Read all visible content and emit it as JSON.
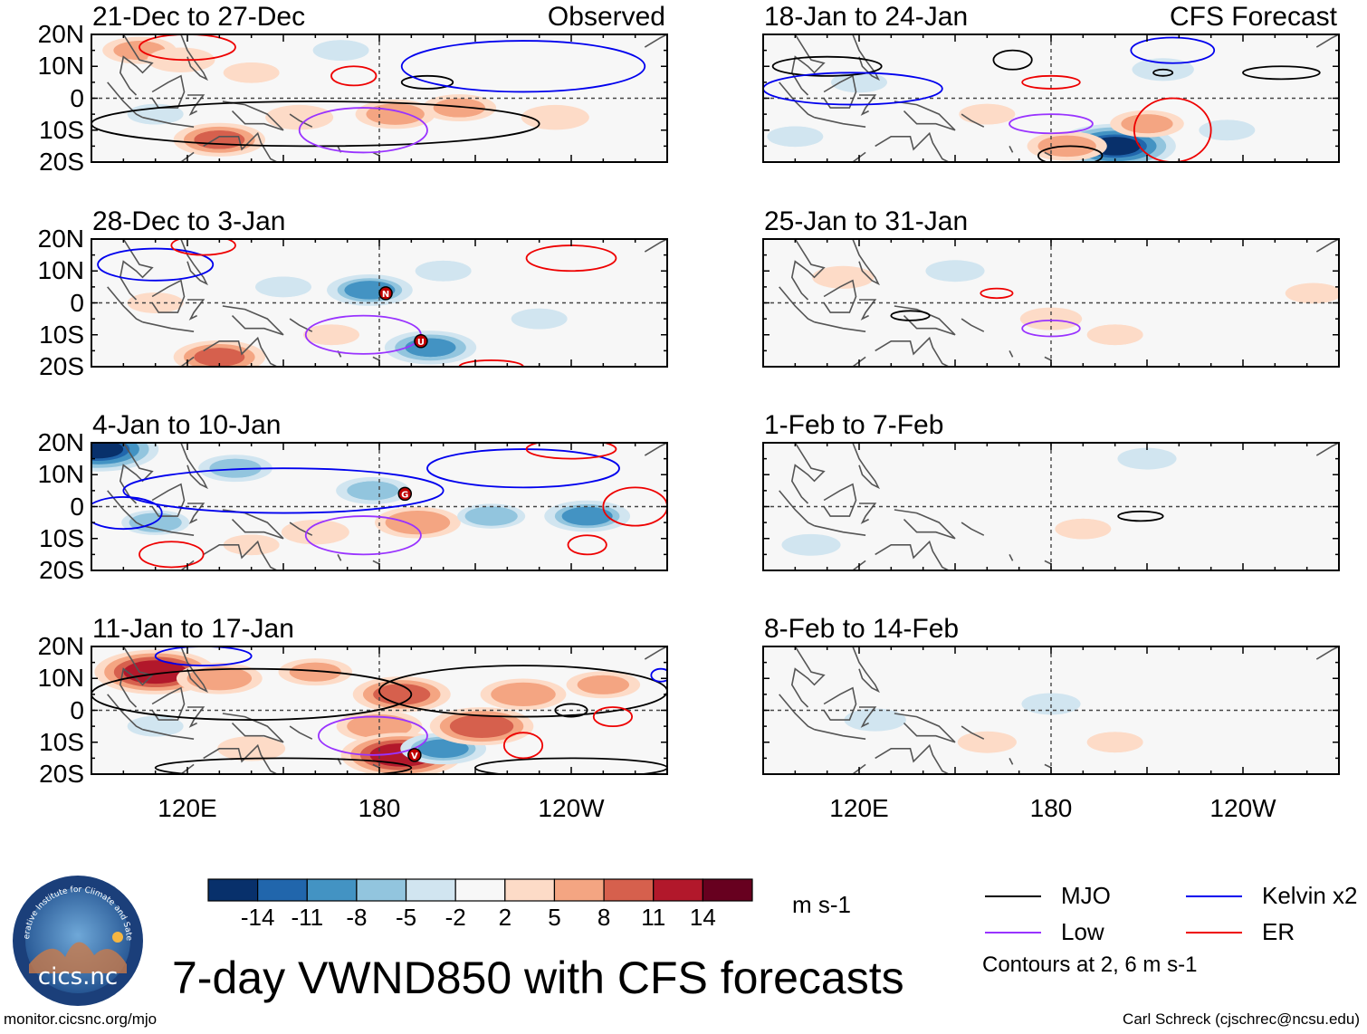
{
  "figure": {
    "title": "7-day VWND850 with CFS forecasts",
    "footer_left": "monitor.cicsnc.org/mjo",
    "footer_right": "Carl Schreck (cjschrec@ncsu.edu)",
    "units": "m s-1",
    "contour_note": "Contours at 2, 6 m s-1",
    "logo": {
      "arc_text": "Cooperative Institute for Climate and Satellites",
      "name": "cics.nc"
    }
  },
  "chart_data": [
    {
      "type": "heatmap",
      "column": "left",
      "row": 0,
      "title": "21-Dec to 27-Dec",
      "tag": "Observed",
      "xlim": [
        90,
        270
      ],
      "ylim": [
        -20,
        20
      ],
      "yticks": [
        "20N",
        "10N",
        "0",
        "10S",
        "20S"
      ],
      "xticks": [],
      "anomalies": [
        {
          "lon": 105,
          "lat": 15,
          "value": 6
        },
        {
          "lon": 118,
          "lat": 12,
          "value": 5
        },
        {
          "lon": 130,
          "lat": -13,
          "value": 9
        },
        {
          "lon": 155,
          "lat": -6,
          "value": 5
        },
        {
          "lon": 185,
          "lat": -5,
          "value": 7
        },
        {
          "lon": 205,
          "lat": -3,
          "value": 6
        },
        {
          "lon": 235,
          "lat": -6,
          "value": 5
        },
        {
          "lon": 140,
          "lat": 8,
          "value": 3
        },
        {
          "lon": 168,
          "lat": 15,
          "value": -3
        },
        {
          "lon": 110,
          "lat": -5,
          "value": -3
        }
      ],
      "contours": [
        {
          "type": "MJO",
          "lon": 160,
          "lat": -8,
          "rx": 70,
          "ry": 7
        },
        {
          "type": "MJO",
          "lon": 195,
          "lat": 5,
          "rx": 8,
          "ry": 2
        },
        {
          "type": "Kelvin",
          "lon": 225,
          "lat": 10,
          "rx": 38,
          "ry": 8
        },
        {
          "type": "Low",
          "lon": 175,
          "lat": -10,
          "rx": 20,
          "ry": 7
        },
        {
          "type": "ER",
          "lon": 172,
          "lat": 7,
          "rx": 7,
          "ry": 3
        },
        {
          "type": "ER",
          "lon": 120,
          "lat": 16,
          "rx": 15,
          "ry": 4
        }
      ],
      "storms": []
    },
    {
      "type": "heatmap",
      "column": "left",
      "row": 1,
      "title": "28-Dec to 3-Jan",
      "tag": "",
      "xlim": [
        90,
        270
      ],
      "ylim": [
        -20,
        20
      ],
      "yticks": [
        "20N",
        "10N",
        "0",
        "10S",
        "20S"
      ],
      "xticks": [],
      "anomalies": [
        {
          "lon": 177,
          "lat": 4,
          "value": -8
        },
        {
          "lon": 196,
          "lat": -14,
          "value": -9
        },
        {
          "lon": 130,
          "lat": -17,
          "value": 9
        },
        {
          "lon": 200,
          "lat": 10,
          "value": -3
        },
        {
          "lon": 230,
          "lat": -5,
          "value": -3
        },
        {
          "lon": 150,
          "lat": 5,
          "value": -3
        },
        {
          "lon": 110,
          "lat": 0,
          "value": 3
        },
        {
          "lon": 165,
          "lat": -10,
          "value": 3
        }
      ],
      "contours": [
        {
          "type": "Kelvin",
          "lon": 110,
          "lat": 12,
          "rx": 18,
          "ry": 5
        },
        {
          "type": "Low",
          "lon": 175,
          "lat": -10,
          "rx": 18,
          "ry": 6
        },
        {
          "type": "ER",
          "lon": 240,
          "lat": 14,
          "rx": 14,
          "ry": 4
        },
        {
          "type": "ER",
          "lon": 125,
          "lat": 18,
          "rx": 10,
          "ry": 3
        },
        {
          "type": "ER",
          "lon": 215,
          "lat": -20,
          "rx": 10,
          "ry": 2
        }
      ],
      "storms": [
        {
          "lon": 182,
          "lat": 3,
          "label": "N"
        },
        {
          "lon": 193,
          "lat": -12,
          "label": "U"
        }
      ]
    },
    {
      "type": "heatmap",
      "column": "left",
      "row": 2,
      "title": "4-Jan to 10-Jan",
      "tag": "",
      "xlim": [
        90,
        270
      ],
      "ylim": [
        -20,
        20
      ],
      "yticks": [
        "20N",
        "10N",
        "0",
        "10S",
        "20S"
      ],
      "xticks": [],
      "anomalies": [
        {
          "lon": 92,
          "lat": 18,
          "value": -14
        },
        {
          "lon": 135,
          "lat": 12,
          "value": -6
        },
        {
          "lon": 178,
          "lat": 5,
          "value": -6
        },
        {
          "lon": 192,
          "lat": -5,
          "value": 8
        },
        {
          "lon": 160,
          "lat": -8,
          "value": 5
        },
        {
          "lon": 215,
          "lat": -3,
          "value": -5
        },
        {
          "lon": 245,
          "lat": -3,
          "value": -8
        },
        {
          "lon": 110,
          "lat": -5,
          "value": -5
        },
        {
          "lon": 140,
          "lat": -12,
          "value": 3
        }
      ],
      "contours": [
        {
          "type": "Kelvin",
          "lon": 150,
          "lat": 5,
          "rx": 50,
          "ry": 7
        },
        {
          "type": "Kelvin",
          "lon": 225,
          "lat": 12,
          "rx": 30,
          "ry": 6
        },
        {
          "type": "Kelvin",
          "lon": 100,
          "lat": -2,
          "rx": 12,
          "ry": 5
        },
        {
          "type": "Low",
          "lon": 175,
          "lat": -9,
          "rx": 18,
          "ry": 6
        },
        {
          "type": "ER",
          "lon": 115,
          "lat": -15,
          "rx": 10,
          "ry": 4
        },
        {
          "type": "ER",
          "lon": 260,
          "lat": 0,
          "rx": 10,
          "ry": 6
        },
        {
          "type": "ER",
          "lon": 245,
          "lat": -12,
          "rx": 6,
          "ry": 3
        },
        {
          "type": "ER",
          "lon": 240,
          "lat": 18,
          "rx": 14,
          "ry": 3
        }
      ],
      "storms": [
        {
          "lon": 188,
          "lat": 4,
          "label": "G"
        }
      ]
    },
    {
      "type": "heatmap",
      "column": "left",
      "row": 3,
      "title": "11-Jan to 17-Jan",
      "tag": "",
      "xlim": [
        90,
        270
      ],
      "ylim": [
        -20,
        20
      ],
      "yticks": [
        "20N",
        "10N",
        "0",
        "10S",
        "20S"
      ],
      "xticks": [
        "120E",
        "180",
        "120W"
      ],
      "anomalies": [
        {
          "lon": 110,
          "lat": 12,
          "value": 14
        },
        {
          "lon": 130,
          "lat": 10,
          "value": 8
        },
        {
          "lon": 160,
          "lat": 12,
          "value": 6
        },
        {
          "lon": 180,
          "lat": -5,
          "value": 8
        },
        {
          "lon": 187,
          "lat": -14,
          "value": 14
        },
        {
          "lon": 187,
          "lat": 5,
          "value": 10
        },
        {
          "lon": 200,
          "lat": -12,
          "value": -8
        },
        {
          "lon": 212,
          "lat": -5,
          "value": 11
        },
        {
          "lon": 225,
          "lat": 5,
          "value": 8
        },
        {
          "lon": 250,
          "lat": 8,
          "value": 6
        },
        {
          "lon": 140,
          "lat": -12,
          "value": 5
        },
        {
          "lon": 110,
          "lat": -5,
          "value": -3
        }
      ],
      "contours": [
        {
          "type": "MJO",
          "lon": 140,
          "lat": 5,
          "rx": 50,
          "ry": 8
        },
        {
          "type": "MJO",
          "lon": 225,
          "lat": 6,
          "rx": 45,
          "ry": 8
        },
        {
          "type": "MJO",
          "lon": 150,
          "lat": -18,
          "rx": 40,
          "ry": 3
        },
        {
          "type": "MJO",
          "lon": 240,
          "lat": -18,
          "rx": 30,
          "ry": 3
        },
        {
          "type": "MJO",
          "lon": 240,
          "lat": 0,
          "rx": 5,
          "ry": 2
        },
        {
          "type": "Low",
          "lon": 178,
          "lat": -8,
          "rx": 17,
          "ry": 6
        },
        {
          "type": "Kelvin",
          "lon": 125,
          "lat": 17,
          "rx": 15,
          "ry": 3
        },
        {
          "type": "Kelvin",
          "lon": 268,
          "lat": 11,
          "rx": 3,
          "ry": 2
        },
        {
          "type": "ER",
          "lon": 225,
          "lat": -11,
          "rx": 6,
          "ry": 4
        },
        {
          "type": "ER",
          "lon": 253,
          "lat": -2,
          "rx": 6,
          "ry": 3
        }
      ],
      "storms": [
        {
          "lon": 191,
          "lat": -14,
          "label": "V"
        }
      ]
    },
    {
      "type": "heatmap",
      "column": "right",
      "row": 0,
      "title": "18-Jan to 24-Jan",
      "tag": "CFS Forecast",
      "xlim": [
        90,
        270
      ],
      "ylim": [
        -20,
        20
      ],
      "yticks": [],
      "xticks": [],
      "anomalies": [
        {
          "lon": 120,
          "lat": 5,
          "value": -3
        },
        {
          "lon": 100,
          "lat": -12,
          "value": -3
        },
        {
          "lon": 200,
          "lat": -15,
          "value": -14
        },
        {
          "lon": 185,
          "lat": -15,
          "value": 7
        },
        {
          "lon": 210,
          "lat": -8,
          "value": 6
        },
        {
          "lon": 160,
          "lat": -5,
          "value": 3
        },
        {
          "lon": 235,
          "lat": -10,
          "value": -3
        },
        {
          "lon": 215,
          "lat": 9,
          "value": -4
        }
      ],
      "contours": [
        {
          "type": "MJO",
          "lon": 110,
          "lat": 10,
          "rx": 17,
          "ry": 3
        },
        {
          "type": "MJO",
          "lon": 168,
          "lat": 12,
          "rx": 6,
          "ry": 3
        },
        {
          "type": "MJO",
          "lon": 252,
          "lat": 8,
          "rx": 12,
          "ry": 2
        },
        {
          "type": "MJO",
          "lon": 186,
          "lat": -18,
          "rx": 10,
          "ry": 3
        },
        {
          "type": "MJO",
          "lon": 215,
          "lat": 8,
          "rx": 3,
          "ry": 1
        },
        {
          "type": "Kelvin",
          "lon": 118,
          "lat": 3,
          "rx": 28,
          "ry": 5
        },
        {
          "type": "Kelvin",
          "lon": 218,
          "lat": 15,
          "rx": 13,
          "ry": 4
        },
        {
          "type": "Low",
          "lon": 180,
          "lat": -8,
          "rx": 13,
          "ry": 3
        },
        {
          "type": "ER",
          "lon": 180,
          "lat": 5,
          "rx": 9,
          "ry": 2
        },
        {
          "type": "ER",
          "lon": 218,
          "lat": -10,
          "rx": 12,
          "ry": 10
        }
      ],
      "storms": []
    },
    {
      "type": "heatmap",
      "column": "right",
      "row": 1,
      "title": "25-Jan to 31-Jan",
      "tag": "",
      "xlim": [
        90,
        270
      ],
      "ylim": [
        -20,
        20
      ],
      "yticks": [],
      "xticks": [],
      "anomalies": [
        {
          "lon": 115,
          "lat": 8,
          "value": 4
        },
        {
          "lon": 180,
          "lat": -5,
          "value": 4
        },
        {
          "lon": 200,
          "lat": -10,
          "value": 3
        },
        {
          "lon": 262,
          "lat": 3,
          "value": 3
        },
        {
          "lon": 150,
          "lat": 10,
          "value": -2
        }
      ],
      "contours": [
        {
          "type": "MJO",
          "lon": 136,
          "lat": -4,
          "rx": 6,
          "ry": 1.5
        },
        {
          "type": "ER",
          "lon": 163,
          "lat": 3,
          "rx": 5,
          "ry": 1.5
        },
        {
          "type": "Low",
          "lon": 180,
          "lat": -8,
          "rx": 9,
          "ry": 2.5
        }
      ],
      "storms": []
    },
    {
      "type": "heatmap",
      "column": "right",
      "row": 2,
      "title": "1-Feb to 7-Feb",
      "tag": "",
      "xlim": [
        90,
        270
      ],
      "ylim": [
        -20,
        20
      ],
      "yticks": [],
      "xticks": [],
      "anomalies": [
        {
          "lon": 190,
          "lat": -7,
          "value": 3
        },
        {
          "lon": 105,
          "lat": -12,
          "value": -2
        },
        {
          "lon": 210,
          "lat": 15,
          "value": -2
        }
      ],
      "contours": [
        {
          "type": "MJO",
          "lon": 208,
          "lat": -3,
          "rx": 7,
          "ry": 1.5
        }
      ],
      "storms": []
    },
    {
      "type": "heatmap",
      "column": "right",
      "row": 3,
      "title": "8-Feb to 14-Feb",
      "tag": "",
      "xlim": [
        90,
        270
      ],
      "ylim": [
        -20,
        20
      ],
      "yticks": [],
      "xticks": [
        "120E",
        "180",
        "120W"
      ],
      "anomalies": [
        {
          "lon": 125,
          "lat": -3,
          "value": -4
        },
        {
          "lon": 180,
          "lat": 2,
          "value": -2
        },
        {
          "lon": 200,
          "lat": -10,
          "value": 3
        },
        {
          "lon": 160,
          "lat": -10,
          "value": 2
        }
      ],
      "contours": [],
      "storms": []
    }
  ],
  "colorbar": {
    "labels": [
      "-14",
      "-11",
      "-8",
      "-5",
      "-2",
      "2",
      "5",
      "8",
      "11",
      "14"
    ],
    "colors": [
      "#08306b",
      "#2166ac",
      "#4393c3",
      "#92c5de",
      "#d1e5f0",
      "#f7f7f7",
      "#fddbc7",
      "#f4a582",
      "#d6604d",
      "#b2182b",
      "#67001f"
    ]
  },
  "legend": [
    {
      "label": "MJO",
      "color": "#000000"
    },
    {
      "label": "Kelvin x2",
      "color": "#0000ee"
    },
    {
      "label": "Low",
      "color": "#9933ff"
    },
    {
      "label": "ER",
      "color": "#ee0000"
    }
  ],
  "contour_colors": {
    "MJO": "#000000",
    "Kelvin": "#0000ee",
    "Low": "#9933ff",
    "ER": "#ee0000"
  }
}
